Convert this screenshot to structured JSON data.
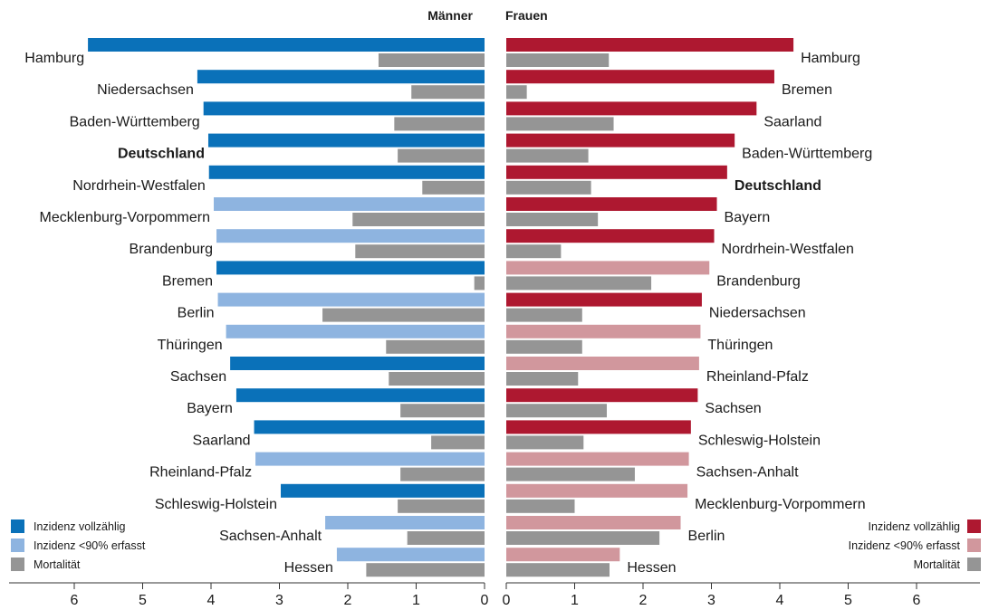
{
  "chart_data": {
    "type": "bar",
    "orientation": "horizontal",
    "colors": {
      "m_full": "#0a71b9",
      "m_partial": "#8eb4e0",
      "f_full": "#ae1830",
      "f_partial": "#d1979d",
      "mortality": "#959595",
      "axis": "#333333",
      "text": "#1a1a1a"
    },
    "xlim": [
      0,
      7
    ],
    "xticks": [
      0,
      1,
      2,
      3,
      4,
      5,
      6
    ],
    "men": {
      "title": "Männer",
      "rows": [
        {
          "label": "Hamburg",
          "incidence": 5.8,
          "mortality": 1.55,
          "complete": true,
          "bold": false
        },
        {
          "label": "Niedersachsen",
          "incidence": 4.2,
          "mortality": 1.07,
          "complete": true,
          "bold": false
        },
        {
          "label": "Baden-Württemberg",
          "incidence": 4.11,
          "mortality": 1.32,
          "complete": true,
          "bold": false
        },
        {
          "label": "Deutschland",
          "incidence": 4.04,
          "mortality": 1.27,
          "complete": true,
          "bold": true
        },
        {
          "label": "Nordrhein-Westfalen",
          "incidence": 4.03,
          "mortality": 0.91,
          "complete": true,
          "bold": false
        },
        {
          "label": "Mecklenburg-Vorpommern",
          "incidence": 3.96,
          "mortality": 1.93,
          "complete": false,
          "bold": false
        },
        {
          "label": "Brandenburg",
          "incidence": 3.92,
          "mortality": 1.89,
          "complete": false,
          "bold": false
        },
        {
          "label": "Bremen",
          "incidence": 3.92,
          "mortality": 0.15,
          "complete": true,
          "bold": false
        },
        {
          "label": "Berlin",
          "incidence": 3.9,
          "mortality": 2.37,
          "complete": false,
          "bold": false
        },
        {
          "label": "Thüringen",
          "incidence": 3.78,
          "mortality": 1.44,
          "complete": false,
          "bold": false
        },
        {
          "label": "Sachsen",
          "incidence": 3.72,
          "mortality": 1.4,
          "complete": true,
          "bold": false
        },
        {
          "label": "Bayern",
          "incidence": 3.63,
          "mortality": 1.23,
          "complete": true,
          "bold": false
        },
        {
          "label": "Saarland",
          "incidence": 3.37,
          "mortality": 0.78,
          "complete": true,
          "bold": false
        },
        {
          "label": "Rheinland-Pfalz",
          "incidence": 3.35,
          "mortality": 1.23,
          "complete": false,
          "bold": false
        },
        {
          "label": "Schleswig-Holstein",
          "incidence": 2.98,
          "mortality": 1.27,
          "complete": true,
          "bold": false
        },
        {
          "label": "Sachsen-Anhalt",
          "incidence": 2.33,
          "mortality": 1.13,
          "complete": false,
          "bold": false
        },
        {
          "label": "Hessen",
          "incidence": 2.16,
          "mortality": 1.73,
          "complete": false,
          "bold": false
        }
      ]
    },
    "women": {
      "title": "Frauen",
      "rows": [
        {
          "label": "Hamburg",
          "incidence": 4.2,
          "mortality": 1.5,
          "complete": true,
          "bold": false
        },
        {
          "label": "Bremen",
          "incidence": 3.92,
          "mortality": 0.3,
          "complete": true,
          "bold": false
        },
        {
          "label": "Saarland",
          "incidence": 3.66,
          "mortality": 1.57,
          "complete": true,
          "bold": false
        },
        {
          "label": "Baden-Württemberg",
          "incidence": 3.34,
          "mortality": 1.2,
          "complete": true,
          "bold": false
        },
        {
          "label": "Deutschland",
          "incidence": 3.23,
          "mortality": 1.24,
          "complete": true,
          "bold": true
        },
        {
          "label": "Bayern",
          "incidence": 3.08,
          "mortality": 1.34,
          "complete": true,
          "bold": false
        },
        {
          "label": "Nordrhein-Westfalen",
          "incidence": 3.04,
          "mortality": 0.8,
          "complete": true,
          "bold": false
        },
        {
          "label": "Brandenburg",
          "incidence": 2.97,
          "mortality": 2.12,
          "complete": false,
          "bold": false
        },
        {
          "label": "Niedersachsen",
          "incidence": 2.86,
          "mortality": 1.11,
          "complete": true,
          "bold": false
        },
        {
          "label": "Thüringen",
          "incidence": 2.84,
          "mortality": 1.11,
          "complete": false,
          "bold": false
        },
        {
          "label": "Rheinland-Pfalz",
          "incidence": 2.82,
          "mortality": 1.05,
          "complete": false,
          "bold": false
        },
        {
          "label": "Sachsen",
          "incidence": 2.8,
          "mortality": 1.47,
          "complete": true,
          "bold": false
        },
        {
          "label": "Schleswig-Holstein",
          "incidence": 2.7,
          "mortality": 1.13,
          "complete": true,
          "bold": false
        },
        {
          "label": "Sachsen-Anhalt",
          "incidence": 2.67,
          "mortality": 1.88,
          "complete": false,
          "bold": false
        },
        {
          "label": "Mecklenburg-Vorpommern",
          "incidence": 2.65,
          "mortality": 1.0,
          "complete": false,
          "bold": false
        },
        {
          "label": "Berlin",
          "incidence": 2.55,
          "mortality": 2.24,
          "complete": false,
          "bold": false
        },
        {
          "label": "Hessen",
          "incidence": 1.66,
          "mortality": 1.51,
          "complete": false,
          "bold": false
        }
      ]
    },
    "legend": {
      "items": [
        {
          "key": "full",
          "label": "Inzidenz vollzählig"
        },
        {
          "key": "partial",
          "label": "Inzidenz <90% erfasst"
        },
        {
          "key": "mortality",
          "label": "Mortalität"
        }
      ],
      "men_placement": "bottom-left",
      "women_placement": "bottom-right"
    }
  }
}
